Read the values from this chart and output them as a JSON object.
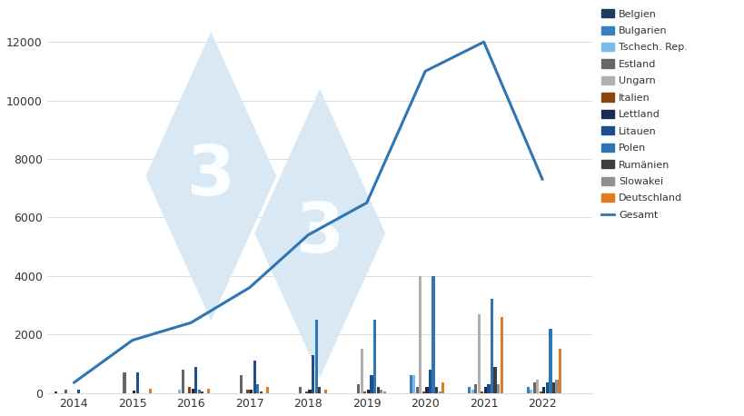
{
  "years": [
    2014,
    2015,
    2016,
    2017,
    2018,
    2019,
    2020,
    2021,
    2022
  ],
  "gesamt": [
    350,
    1800,
    2400,
    3600,
    5400,
    6500,
    11000,
    12000,
    7300
  ],
  "countries": [
    "Belgien",
    "Bulgarien",
    "Tschech. Rep.",
    "Estland",
    "Ungarn",
    "Italien",
    "Lettland",
    "Litauen",
    "Polen",
    "Rumänien",
    "Slowakei",
    "Deutschland"
  ],
  "colors": [
    "#1e3a5f",
    "#3a7fc1",
    "#7bbde8",
    "#666666",
    "#b0b0b0",
    "#8B4513",
    "#162d50",
    "#1e4f8c",
    "#2e75b6",
    "#3d3d3d",
    "#909090",
    "#e07b20"
  ],
  "data": {
    "Belgien": [
      50,
      0,
      0,
      0,
      0,
      0,
      0,
      0,
      0
    ],
    "Bulgarien": [
      0,
      0,
      0,
      0,
      0,
      0,
      600,
      200,
      200
    ],
    "Tschech. Rep.": [
      0,
      0,
      100,
      0,
      0,
      0,
      600,
      100,
      100
    ],
    "Estland": [
      100,
      700,
      800,
      600,
      200,
      300,
      200,
      300,
      350
    ],
    "Ungarn": [
      0,
      0,
      0,
      0,
      0,
      1500,
      4000,
      2700,
      450
    ],
    "Italien": [
      0,
      0,
      200,
      100,
      50,
      50,
      50,
      50,
      50
    ],
    "Lettland": [
      0,
      80,
      150,
      100,
      100,
      100,
      200,
      200,
      200
    ],
    "Litauen": [
      100,
      700,
      900,
      1100,
      1300,
      600,
      800,
      300,
      350
    ],
    "Polen": [
      0,
      0,
      100,
      300,
      2500,
      2500,
      4000,
      3200,
      2200
    ],
    "Rumänien": [
      0,
      0,
      50,
      50,
      200,
      200,
      200,
      900,
      350
    ],
    "Slowakei": [
      0,
      0,
      0,
      0,
      0,
      100,
      50,
      300,
      450
    ],
    "Deutschland": [
      0,
      150,
      150,
      200,
      100,
      50,
      350,
      2600,
      1500
    ]
  },
  "background_color": "#ffffff",
  "watermark_color": "#d8e8f5",
  "watermark_text_color": "#ffffff",
  "line_color": "#2e75b6",
  "line_width": 2.2,
  "ylim": [
    0,
    13000
  ],
  "yticks": [
    0,
    2000,
    4000,
    6000,
    8000,
    10000,
    12000
  ],
  "grid_color": "#dddddd",
  "bar_width": 0.055
}
